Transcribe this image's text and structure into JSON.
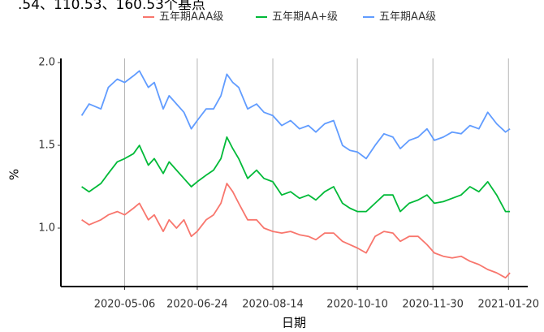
{
  "chart_data": {
    "type": "line",
    "title": ".54、110.53、160.53个基点",
    "x_label": "日期",
    "y_label": "%",
    "x": [
      "2020-04-07",
      "2020-04-12",
      "2020-04-20",
      "2020-04-25",
      "2020-05-01",
      "2020-05-06",
      "2020-05-12",
      "2020-05-16",
      "2020-05-22",
      "2020-05-26",
      "2020-06-01",
      "2020-06-05",
      "2020-06-10",
      "2020-06-15",
      "2020-06-20",
      "2020-06-24",
      "2020-06-30",
      "2020-07-05",
      "2020-07-10",
      "2020-07-14",
      "2020-07-18",
      "2020-07-22",
      "2020-07-28",
      "2020-08-03",
      "2020-08-08",
      "2020-08-14",
      "2020-08-20",
      "2020-08-26",
      "2020-09-01",
      "2020-09-07",
      "2020-09-12",
      "2020-09-18",
      "2020-09-24",
      "2020-09-30",
      "2020-10-05",
      "2020-10-10",
      "2020-10-16",
      "2020-10-22",
      "2020-10-28",
      "2020-11-03",
      "2020-11-08",
      "2020-11-14",
      "2020-11-20",
      "2020-11-26",
      "2020-12-01",
      "2020-12-07",
      "2020-12-13",
      "2020-12-19",
      "2020-12-25",
      "2020-12-31",
      "2021-01-06",
      "2021-01-12",
      "2021-01-18",
      "2021-01-21"
    ],
    "series": [
      {
        "name": "五年期AAA级",
        "color": "#F8766D",
        "values": [
          1.05,
          1.02,
          1.05,
          1.08,
          1.1,
          1.08,
          1.12,
          1.15,
          1.05,
          1.08,
          0.98,
          1.05,
          1.0,
          1.05,
          0.95,
          0.98,
          1.05,
          1.08,
          1.15,
          1.27,
          1.22,
          1.15,
          1.05,
          1.05,
          1.0,
          0.98,
          0.97,
          0.98,
          0.96,
          0.95,
          0.93,
          0.97,
          0.97,
          0.92,
          0.9,
          0.88,
          0.85,
          0.95,
          0.98,
          0.97,
          0.92,
          0.95,
          0.95,
          0.9,
          0.85,
          0.83,
          0.82,
          0.83,
          0.8,
          0.78,
          0.75,
          0.73,
          0.7,
          0.73
        ]
      },
      {
        "name": "五年期AA+级",
        "color": "#00BA38",
        "values": [
          1.25,
          1.22,
          1.27,
          1.33,
          1.4,
          1.42,
          1.45,
          1.5,
          1.38,
          1.42,
          1.33,
          1.4,
          1.35,
          1.3,
          1.25,
          1.28,
          1.32,
          1.35,
          1.42,
          1.55,
          1.48,
          1.42,
          1.3,
          1.35,
          1.3,
          1.28,
          1.2,
          1.22,
          1.18,
          1.2,
          1.17,
          1.22,
          1.25,
          1.15,
          1.12,
          1.1,
          1.1,
          1.15,
          1.2,
          1.2,
          1.1,
          1.15,
          1.17,
          1.2,
          1.15,
          1.16,
          1.18,
          1.2,
          1.25,
          1.22,
          1.28,
          1.2,
          1.1,
          1.1
        ]
      },
      {
        "name": "五年期AA级",
        "color": "#619CFF",
        "values": [
          1.68,
          1.75,
          1.72,
          1.85,
          1.9,
          1.88,
          1.92,
          1.95,
          1.85,
          1.88,
          1.72,
          1.8,
          1.75,
          1.7,
          1.6,
          1.65,
          1.72,
          1.72,
          1.8,
          1.93,
          1.88,
          1.85,
          1.72,
          1.75,
          1.7,
          1.68,
          1.62,
          1.65,
          1.6,
          1.62,
          1.58,
          1.63,
          1.65,
          1.5,
          1.47,
          1.46,
          1.42,
          1.5,
          1.57,
          1.55,
          1.48,
          1.53,
          1.55,
          1.6,
          1.53,
          1.55,
          1.58,
          1.57,
          1.62,
          1.6,
          1.7,
          1.63,
          1.58,
          1.6
        ]
      }
    ],
    "xlim": [
      "2020-03-24",
      "2021-02-02"
    ],
    "xticks": [
      "2020-05-06",
      "2020-06-24",
      "2020-08-14",
      "2020-10-10",
      "2020-11-30",
      "2021-01-20"
    ],
    "ylim": [
      0.647,
      2.025
    ],
    "yticks": [
      {
        "value": 1,
        "label": "1.0"
      },
      {
        "value": 1.5,
        "label": "1.5"
      },
      {
        "value": 2,
        "label": "2.0"
      }
    ],
    "grid": "x",
    "legend": "top"
  }
}
